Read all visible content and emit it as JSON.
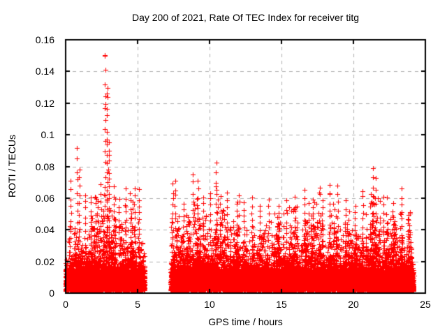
{
  "chart_data": {
    "type": "scatter",
    "title": "Day 200 of 2021, Rate Of TEC Index for receiver titg",
    "xlabel": "GPS time / hours",
    "ylabel": "ROTI / TECUs",
    "xlim": [
      0,
      25
    ],
    "ylim": [
      0,
      0.16
    ],
    "xticks": [
      0,
      5,
      10,
      15,
      20,
      25
    ],
    "xtick_labels": [
      "0",
      "5",
      "10",
      "15",
      "20",
      "25"
    ],
    "yticks": [
      0,
      0.02,
      0.04,
      0.06,
      0.08,
      0.1,
      0.12,
      0.14,
      0.16
    ],
    "ytick_labels": [
      "0",
      "0.02",
      "0.04",
      "0.06",
      "0.08",
      "0.1",
      "0.12",
      "0.14",
      "0.16"
    ],
    "grid": true,
    "legend": "none",
    "marker": "plus",
    "colors": {
      "points": "#ff0000",
      "grid": "#b0b0b0",
      "axes": "#000000",
      "background": "#ffffff"
    },
    "max_value": 0.154,
    "max_value_time": 2.75,
    "data_gap_hours": [
      5.5,
      7.3
    ],
    "segments": [
      {
        "start": 0.0,
        "end": 5.5
      },
      {
        "start": 7.3,
        "end": 24.2
      }
    ],
    "density_envelope": [
      [
        0.0,
        0.022
      ],
      [
        0.3,
        0.028
      ],
      [
        0.7,
        0.034
      ],
      [
        1.0,
        0.038
      ],
      [
        1.5,
        0.036
      ],
      [
        2.0,
        0.04
      ],
      [
        2.5,
        0.042
      ],
      [
        2.8,
        0.048
      ],
      [
        3.2,
        0.042
      ],
      [
        3.7,
        0.038
      ],
      [
        4.2,
        0.04
      ],
      [
        4.7,
        0.038
      ],
      [
        5.1,
        0.034
      ],
      [
        5.5,
        0.024
      ],
      [
        7.3,
        0.034
      ],
      [
        7.8,
        0.036
      ],
      [
        8.5,
        0.038
      ],
      [
        9.2,
        0.044
      ],
      [
        9.8,
        0.038
      ],
      [
        10.4,
        0.044
      ],
      [
        11.0,
        0.038
      ],
      [
        11.6,
        0.036
      ],
      [
        12.2,
        0.038
      ],
      [
        13.0,
        0.036
      ],
      [
        13.8,
        0.034
      ],
      [
        14.5,
        0.036
      ],
      [
        15.2,
        0.036
      ],
      [
        16.0,
        0.038
      ],
      [
        16.8,
        0.04
      ],
      [
        17.5,
        0.038
      ],
      [
        18.2,
        0.042
      ],
      [
        19.0,
        0.04
      ],
      [
        19.6,
        0.036
      ],
      [
        20.3,
        0.038
      ],
      [
        21.0,
        0.044
      ],
      [
        21.5,
        0.046
      ],
      [
        22.2,
        0.038
      ],
      [
        22.8,
        0.036
      ],
      [
        23.4,
        0.036
      ],
      [
        24.2,
        0.028
      ]
    ],
    "spikes": [
      [
        0.35,
        0.071
      ],
      [
        0.8,
        0.09
      ],
      [
        0.95,
        0.078
      ],
      [
        1.35,
        0.062
      ],
      [
        1.75,
        0.062
      ],
      [
        2.2,
        0.058
      ],
      [
        2.45,
        0.068
      ],
      [
        2.75,
        0.154
      ],
      [
        2.87,
        0.133
      ],
      [
        3.0,
        0.096
      ],
      [
        3.35,
        0.066
      ],
      [
        3.7,
        0.06
      ],
      [
        4.15,
        0.065
      ],
      [
        4.5,
        0.062
      ],
      [
        4.8,
        0.066
      ],
      [
        5.1,
        0.065
      ],
      [
        7.45,
        0.07
      ],
      [
        7.62,
        0.072
      ],
      [
        8.2,
        0.058
      ],
      [
        8.85,
        0.075
      ],
      [
        9.2,
        0.07
      ],
      [
        9.55,
        0.062
      ],
      [
        10.05,
        0.064
      ],
      [
        10.45,
        0.081
      ],
      [
        10.75,
        0.062
      ],
      [
        11.2,
        0.063
      ],
      [
        11.9,
        0.056
      ],
      [
        12.4,
        0.058
      ],
      [
        12.95,
        0.06
      ],
      [
        13.5,
        0.056
      ],
      [
        14.1,
        0.058
      ],
      [
        14.8,
        0.056
      ],
      [
        15.35,
        0.058
      ],
      [
        15.95,
        0.06
      ],
      [
        16.6,
        0.066
      ],
      [
        17.2,
        0.06
      ],
      [
        17.85,
        0.058
      ],
      [
        18.35,
        0.062
      ],
      [
        18.9,
        0.068
      ],
      [
        19.45,
        0.058
      ],
      [
        20.1,
        0.056
      ],
      [
        20.65,
        0.065
      ],
      [
        21.35,
        0.079
      ],
      [
        21.55,
        0.072
      ],
      [
        22.1,
        0.06
      ],
      [
        22.75,
        0.056
      ],
      [
        23.35,
        0.065
      ],
      [
        23.85,
        0.05
      ]
    ],
    "seed": 11
  }
}
